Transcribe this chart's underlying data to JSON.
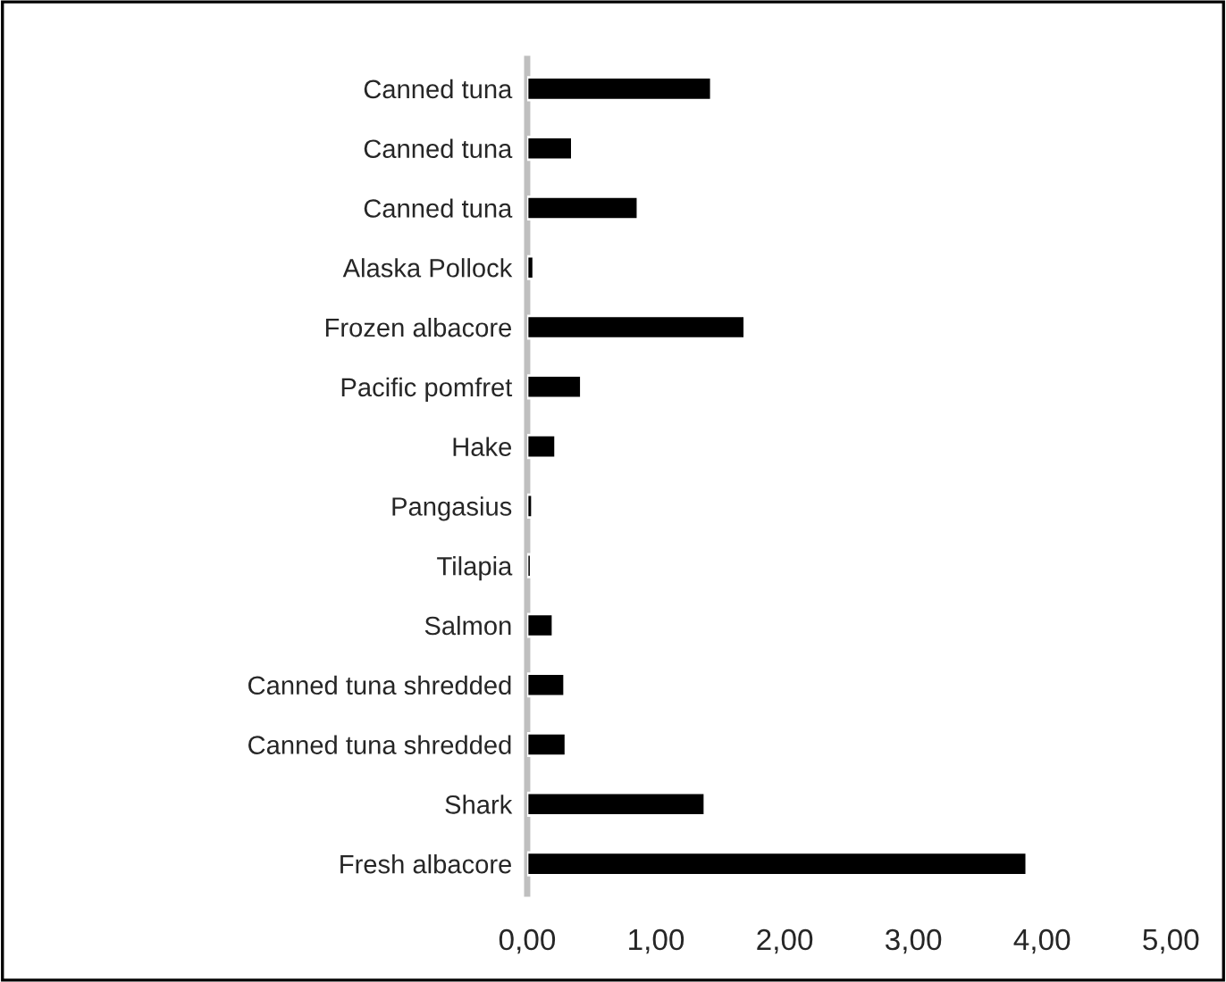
{
  "chart_data": {
    "type": "bar",
    "orientation": "horizontal",
    "categories": [
      "Canned tuna",
      "Canned tuna",
      "Canned tuna",
      "Alaska Pollock",
      "Frozen albacore",
      "Pacific pomfret",
      "Hake",
      "Pangasius",
      "Tilapia",
      "Salmon",
      "Canned tuna shredded",
      "Canned tuna shredded",
      "Shark",
      "Fresh albacore"
    ],
    "values": [
      1.43,
      0.35,
      0.86,
      0.05,
      1.69,
      0.42,
      0.22,
      0.04,
      0.03,
      0.2,
      0.29,
      0.3,
      1.38,
      3.88
    ],
    "color": "#000000",
    "xlim": [
      0,
      5
    ],
    "xticks": [
      {
        "value": 0,
        "label": "0,00"
      },
      {
        "value": 1,
        "label": "1,00"
      },
      {
        "value": 2,
        "label": "2,00"
      },
      {
        "value": 3,
        "label": "3,00"
      },
      {
        "value": 4,
        "label": "4,00"
      },
      {
        "value": 5,
        "label": "5,00"
      }
    ],
    "grid": false,
    "legend": false
  }
}
